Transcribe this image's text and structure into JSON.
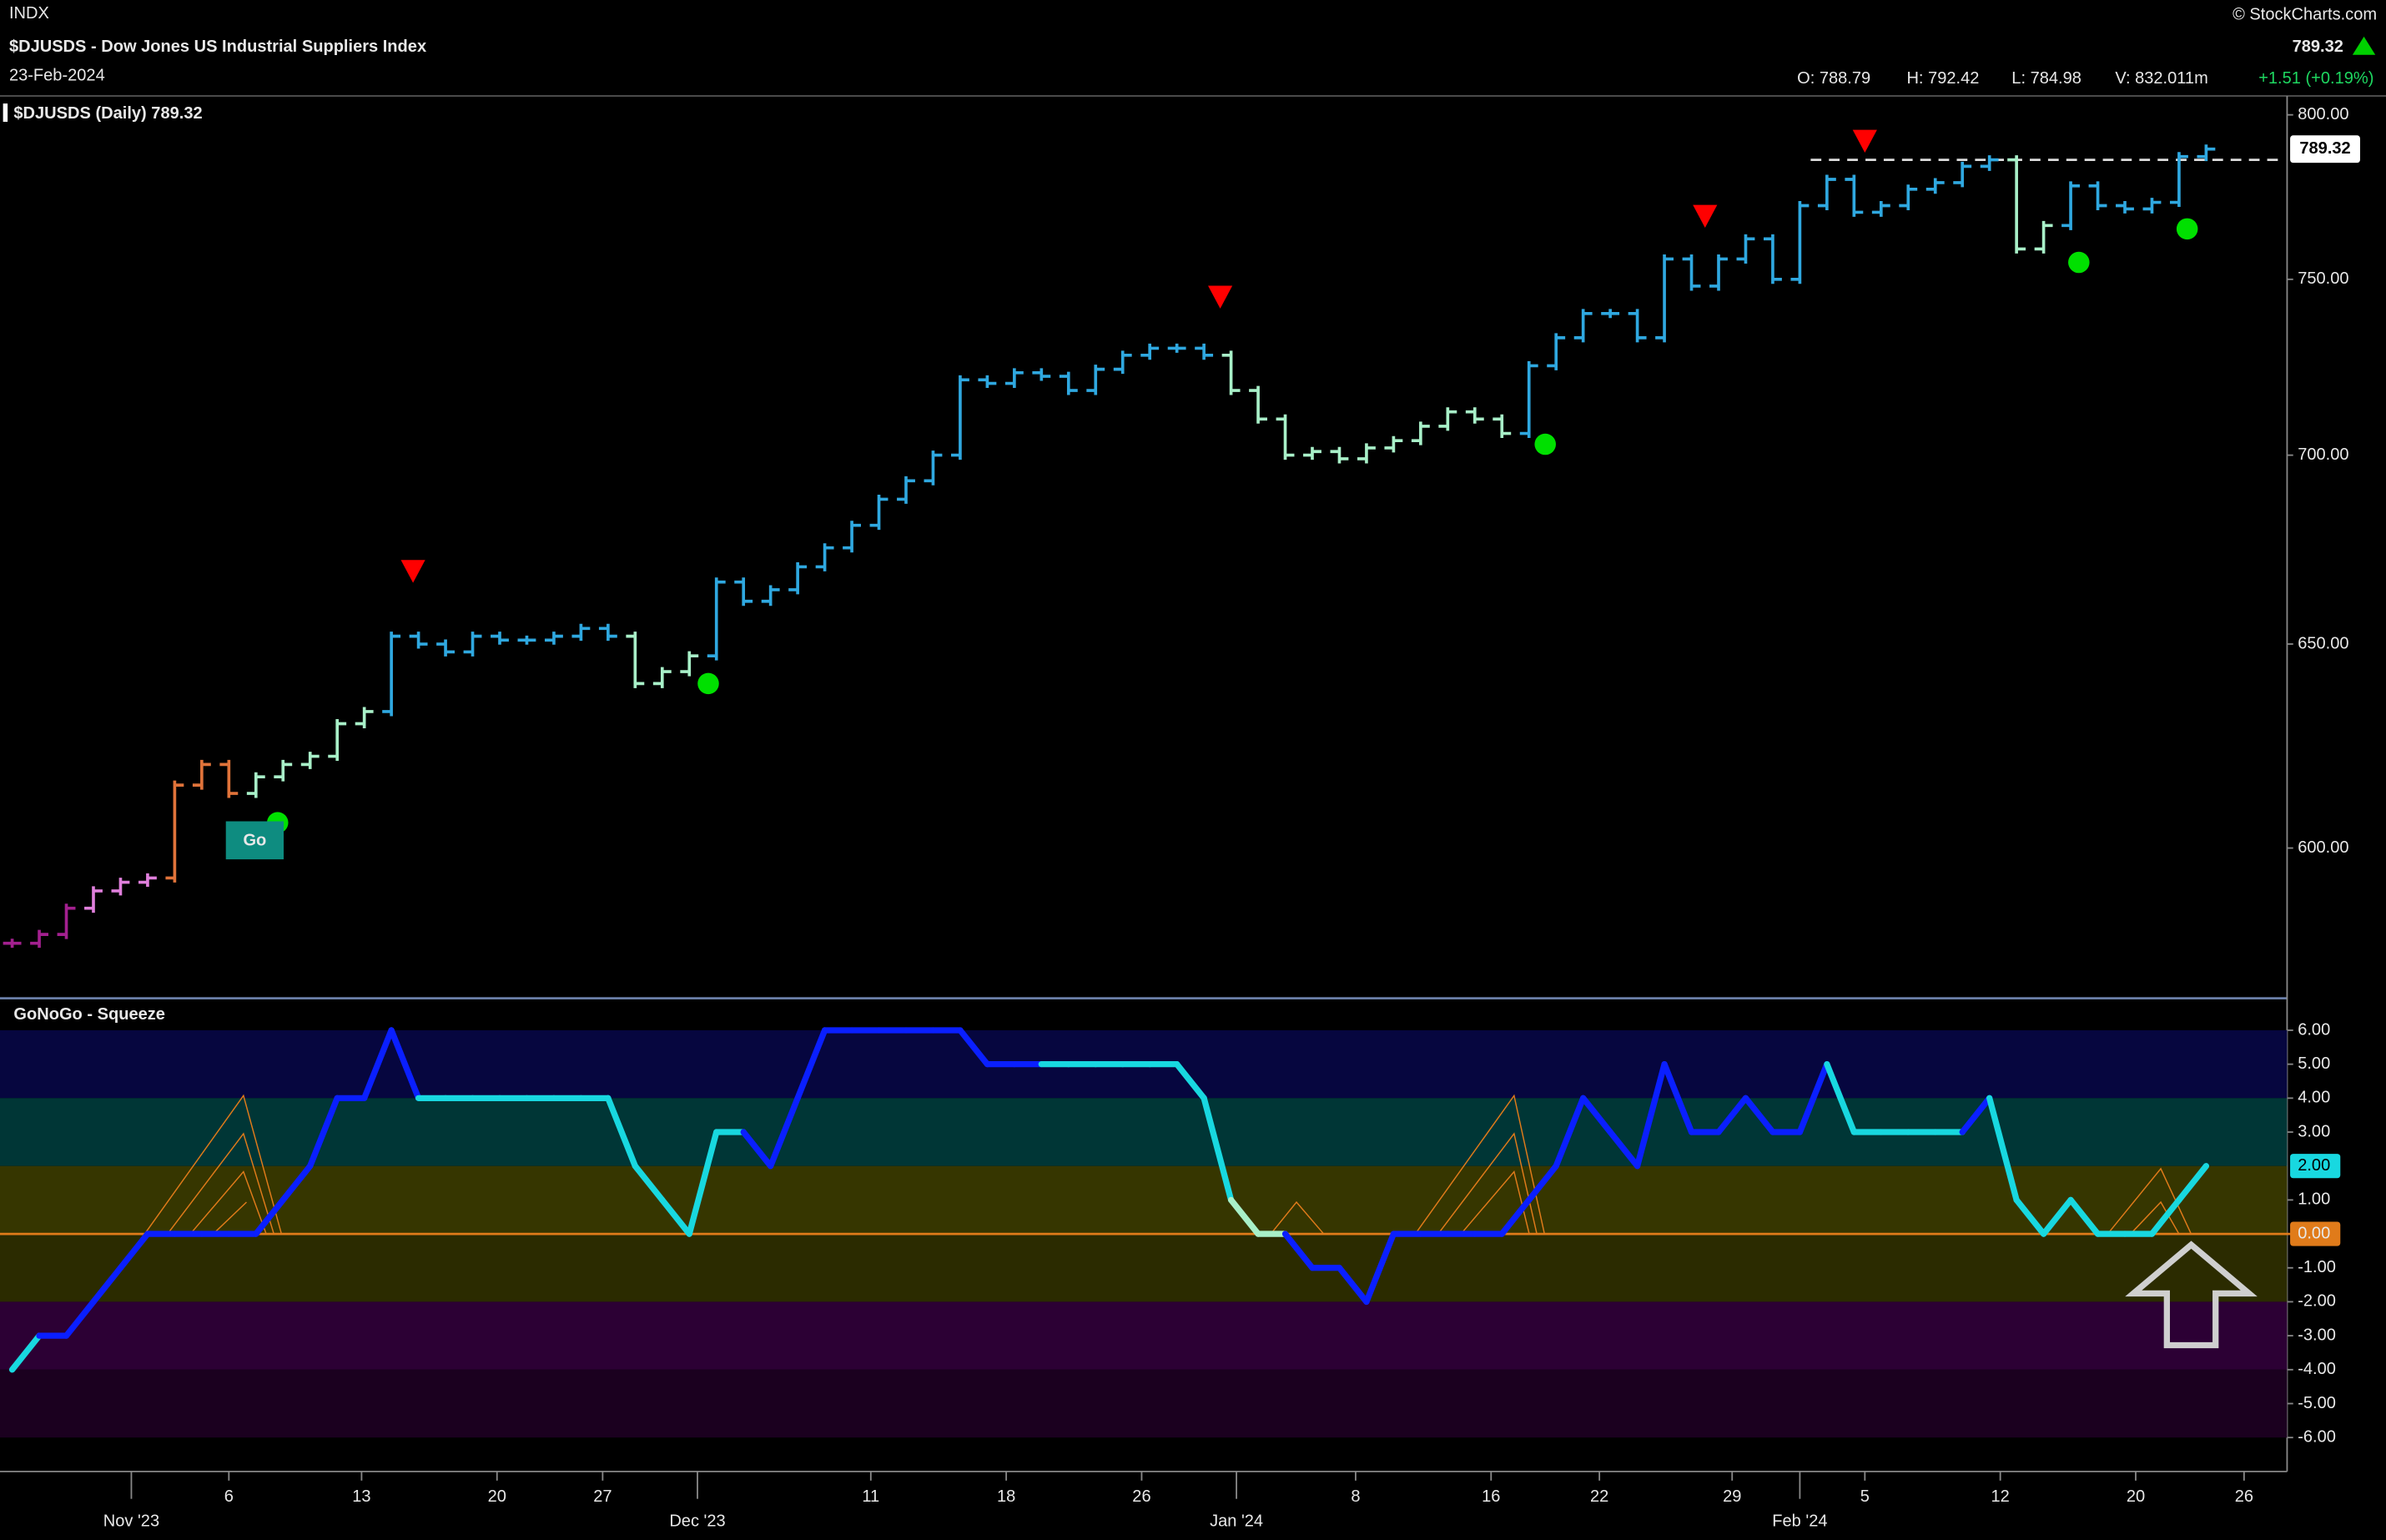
{
  "header": {
    "exchange": "INDX",
    "title": "$DJUSDS - Dow Jones US Industrial Suppliers Index",
    "date": "23-Feb-2024",
    "source": "© StockCharts.com",
    "last": "789.32",
    "open": "O: 788.79",
    "high": "H: 792.42",
    "low": "L: 784.98",
    "volume": "V: 832.011m",
    "change": "+1.51 (+0.19%)"
  },
  "chart_data": [
    {
      "type": "ohlc",
      "legend": "$DJUSDS (Daily)",
      "log": true,
      "ylim": [
        566,
        805
      ],
      "yticks": [
        {
          "value": 600,
          "label": "600.00"
        },
        {
          "value": 650,
          "label": "650.00"
        },
        {
          "value": 700,
          "label": "700.00"
        },
        {
          "value": 750,
          "label": "750.00"
        },
        {
          "value": 800,
          "label": "800.00"
        }
      ],
      "xlim": [
        -0.45,
        84
      ],
      "xticks": [
        {
          "value": 4.4,
          "label": "Nov '23"
        },
        {
          "value": 8,
          "label": "6"
        },
        {
          "value": 12.9,
          "label": "13"
        },
        {
          "value": 17.9,
          "label": "20"
        },
        {
          "value": 21.8,
          "label": "27"
        },
        {
          "value": 25.3,
          "label": "Dec '23"
        },
        {
          "value": 31.7,
          "label": "11"
        },
        {
          "value": 36.7,
          "label": "18"
        },
        {
          "value": 41.7,
          "label": "26"
        },
        {
          "value": 45.2,
          "label": "Jan '24"
        },
        {
          "value": 49.6,
          "label": "8"
        },
        {
          "value": 54.6,
          "label": "16"
        },
        {
          "value": 58.6,
          "label": "22"
        },
        {
          "value": 63.5,
          "label": "29"
        },
        {
          "value": 66,
          "label": "Feb '24"
        },
        {
          "value": 68.4,
          "label": "5"
        },
        {
          "value": 73.4,
          "label": "12"
        },
        {
          "value": 78.4,
          "label": "20"
        },
        {
          "value": 82.4,
          "label": "26"
        }
      ],
      "values": [
        578,
        580,
        586,
        590,
        592,
        593,
        615,
        620,
        613,
        617,
        620,
        622,
        630,
        633,
        652,
        650,
        648,
        652,
        651,
        651,
        652,
        654,
        652,
        640,
        643,
        647,
        666,
        661,
        664,
        670,
        675,
        681,
        688,
        693,
        700,
        721,
        720,
        723,
        722,
        718,
        724,
        728,
        730,
        730,
        728,
        718,
        710,
        700,
        701,
        699,
        702,
        704,
        708,
        712,
        710,
        706,
        725,
        733,
        740,
        740,
        733,
        756,
        748,
        756,
        762,
        750,
        772,
        780,
        770,
        772,
        777,
        779,
        784,
        786,
        759,
        766,
        778,
        772,
        771,
        773,
        787,
        789.32
      ],
      "colors": [
        "#a3208f",
        "#a3208f",
        "#a3208f",
        "#e07fdc",
        "#e07fdc",
        "#e07fdc",
        "#e0733a",
        "#e0733a",
        "#e0733a",
        "#a8f0c8",
        "#a8f0c8",
        "#a8f0c8",
        "#a8f0c8",
        "#a8f0c8",
        "#2fa8e0",
        "#2fa8e0",
        "#2fa8e0",
        "#2fa8e0",
        "#2fa8e0",
        "#2fa8e0",
        "#2fa8e0",
        "#2fa8e0",
        "#2fa8e0",
        "#a8f0c8",
        "#a8f0c8",
        "#a8f0c8",
        "#2fa8e0",
        "#2fa8e0",
        "#2fa8e0",
        "#2fa8e0",
        "#2fa8e0",
        "#2fa8e0",
        "#2fa8e0",
        "#2fa8e0",
        "#2fa8e0",
        "#2fa8e0",
        "#2fa8e0",
        "#2fa8e0",
        "#2fa8e0",
        "#2fa8e0",
        "#2fa8e0",
        "#2fa8e0",
        "#2fa8e0",
        "#2fa8e0",
        "#2fa8e0",
        "#a8f0c8",
        "#a8f0c8",
        "#a8f0c8",
        "#a8f0c8",
        "#a8f0c8",
        "#a8f0c8",
        "#a8f0c8",
        "#a8f0c8",
        "#a8f0c8",
        "#a8f0c8",
        "#a8f0c8",
        "#2fa8e0",
        "#2fa8e0",
        "#2fa8e0",
        "#2fa8e0",
        "#2fa8e0",
        "#2fa8e0",
        "#2fa8e0",
        "#2fa8e0",
        "#2fa8e0",
        "#2fa8e0",
        "#2fa8e0",
        "#2fa8e0",
        "#2fa8e0",
        "#2fa8e0",
        "#2fa8e0",
        "#2fa8e0",
        "#2fa8e0",
        "#2fa8e0",
        "#a8f0c8",
        "#a8f0c8",
        "#2fa8e0",
        "#2fa8e0",
        "#2fa8e0",
        "#2fa8e0",
        "#2fa8e0",
        "#2fa8e0"
      ],
      "markers": [
        {
          "shape": "triangle-down",
          "color": "#ff0000",
          "x": 14.8,
          "y": 669
        },
        {
          "shape": "triangle-down",
          "color": "#ff0000",
          "x": 44.6,
          "y": 745
        },
        {
          "shape": "triangle-down",
          "color": "#ff0000",
          "x": 62.5,
          "y": 769
        },
        {
          "shape": "triangle-down",
          "color": "#ff0000",
          "x": 68.4,
          "y": 792
        },
        {
          "shape": "circle",
          "color": "#00e000",
          "x": 9.8,
          "y": 606
        },
        {
          "shape": "circle",
          "color": "#00e000",
          "x": 25.7,
          "y": 640
        },
        {
          "shape": "circle",
          "color": "#00e000",
          "x": 56.6,
          "y": 703
        },
        {
          "shape": "circle",
          "color": "#00e000",
          "x": 76.3,
          "y": 755
        },
        {
          "shape": "circle",
          "color": "#00e000",
          "x": 80.3,
          "y": 765
        }
      ],
      "annotation": {
        "text": "Go",
        "x": 8.9,
        "y": 602
      },
      "reference_line": {
        "value": 786,
        "x_from": 66.4
      }
    },
    {
      "type": "line",
      "legend": "GoNoGo - Squeeze",
      "ylim": [
        -7,
        6.45
      ],
      "yticks": [
        {
          "value": 6,
          "label": "6.00"
        },
        {
          "value": 5,
          "label": "5.00"
        },
        {
          "value": 4,
          "label": "4.00"
        },
        {
          "value": 3,
          "label": "3.00"
        },
        {
          "value": 1,
          "label": "1.00"
        },
        {
          "value": 0,
          "label": "0.00"
        },
        {
          "value": -1,
          "label": "-1.00"
        },
        {
          "value": -2,
          "label": "-2.00"
        },
        {
          "value": -3,
          "label": "-3.00"
        },
        {
          "value": -4,
          "label": "-4.00"
        },
        {
          "value": -5,
          "label": "-5.00"
        },
        {
          "value": -6,
          "label": "-6.00"
        }
      ],
      "bands": [
        {
          "from": 4,
          "to": 6,
          "color": "#06063f"
        },
        {
          "from": 2,
          "to": 4,
          "color": "#003636"
        },
        {
          "from": 0,
          "to": 2,
          "color": "#363600"
        },
        {
          "from": -2,
          "to": 0,
          "color": "#2b2b00"
        },
        {
          "from": -4,
          "to": -2,
          "color": "#2c0034"
        },
        {
          "from": -6,
          "to": -4,
          "color": "#1b001f"
        }
      ],
      "zero_color": "#e07b1a",
      "values": [
        -4,
        -3,
        -3,
        -2,
        -1,
        0,
        0,
        0,
        0,
        0,
        1,
        2,
        4,
        4,
        6,
        4,
        4,
        4,
        4,
        4,
        4,
        4,
        4,
        2,
        1,
        0,
        3,
        3,
        2,
        4,
        6,
        6,
        6,
        6,
        6,
        6,
        5,
        5,
        5,
        5,
        5,
        5,
        5,
        5,
        4,
        1,
        0,
        0,
        -1,
        -1,
        -2,
        0,
        0,
        0,
        0,
        0,
        1,
        2,
        4,
        3,
        2,
        5,
        3,
        3,
        4,
        3,
        3,
        5,
        3,
        3,
        3,
        3,
        3,
        4,
        1,
        0,
        1,
        0,
        0,
        0,
        1,
        2
      ],
      "last_value_label": "2.00",
      "colors": [
        "#18d8e0",
        "#18d8e0",
        "#0a1fff",
        "#0a1fff",
        "#0a1fff",
        "#0a1fff",
        "#0a1fff",
        "#0a1fff",
        "#0a1fff",
        "#0a1fff",
        "#0a1fff",
        "#0a1fff",
        "#0a1fff",
        "#0a1fff",
        "#0a1fff",
        "#0a1fff",
        "#18d8e0",
        "#18d8e0",
        "#18d8e0",
        "#18d8e0",
        "#18d8e0",
        "#18d8e0",
        "#18d8e0",
        "#18d8e0",
        "#18d8e0",
        "#18d8e0",
        "#18d8e0",
        "#18d8e0",
        "#0a1fff",
        "#0a1fff",
        "#0a1fff",
        "#0a1fff",
        "#0a1fff",
        "#0a1fff",
        "#0a1fff",
        "#0a1fff",
        "#0a1fff",
        "#0a1fff",
        "#0a1fff",
        "#18d8e0",
        "#18d8e0",
        "#18d8e0",
        "#18d8e0",
        "#18d8e0",
        "#18d8e0",
        "#18d8e0",
        "#a8f0c8",
        "#a8f0c8",
        "#0a1fff",
        "#0a1fff",
        "#0a1fff",
        "#0a1fff",
        "#0a1fff",
        "#0a1fff",
        "#0a1fff",
        "#0a1fff",
        "#0a1fff",
        "#0a1fff",
        "#0a1fff",
        "#0a1fff",
        "#0a1fff",
        "#0a1fff",
        "#0a1fff",
        "#0a1fff",
        "#0a1fff",
        "#0a1fff",
        "#0a1fff",
        "#0a1fff",
        "#18d8e0",
        "#18d8e0",
        "#18d8e0",
        "#18d8e0",
        "#18d8e0",
        "#0a1fff",
        "#18d8e0",
        "#18d8e0",
        "#18d8e0",
        "#18d8e0",
        "#18d8e0",
        "#18d8e0",
        "#18d8e0",
        "#18d8e0"
      ]
    }
  ]
}
